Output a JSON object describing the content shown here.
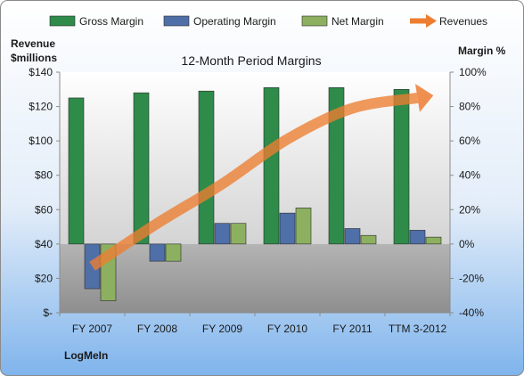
{
  "chart_data": {
    "type": "bar",
    "title": "12-Month Period Margins",
    "company": "LogMeIn",
    "left_axis": {
      "label_line1": "Revenue",
      "label_line2": "$millions",
      "ylim": [
        0,
        140
      ],
      "ticks": [
        0,
        20,
        40,
        60,
        80,
        100,
        120,
        140
      ],
      "tick_labels": [
        "$-",
        "$20",
        "$40",
        "$60",
        "$80",
        "$100",
        "$120",
        "$140"
      ]
    },
    "right_axis": {
      "label": "Margin %",
      "ylim": [
        -40,
        100
      ],
      "ticks": [
        -40,
        -20,
        0,
        20,
        40,
        60,
        80,
        100
      ],
      "tick_labels": [
        "-40%",
        "-20%",
        "0%",
        "20%",
        "40%",
        "60%",
        "80%",
        "100%"
      ]
    },
    "categories": [
      "FY 2007",
      "FY 2008",
      "FY 2009",
      "FY 2010",
      "FY 2011",
      "TTM 3-2012"
    ],
    "series": [
      {
        "name": "Gross Margin",
        "kind": "bar",
        "axis": "right",
        "color": "#2E8B4A",
        "values": [
          85,
          88,
          89,
          91,
          91,
          90
        ]
      },
      {
        "name": "Operating Margin",
        "kind": "bar",
        "axis": "right",
        "color": "#4F6FA8",
        "values": [
          -26,
          -10,
          12,
          18,
          9,
          8
        ]
      },
      {
        "name": "Net Margin",
        "kind": "bar",
        "axis": "right",
        "color": "#8CB060",
        "values": [
          -33,
          -10,
          12,
          21,
          5,
          4
        ]
      },
      {
        "name": "Revenues",
        "kind": "line-arrow",
        "axis": "left",
        "color": "#ED7D31",
        "values": [
          27,
          52,
          75,
          101,
          119,
          125
        ]
      }
    ],
    "legend_position": "top",
    "grid": false
  }
}
